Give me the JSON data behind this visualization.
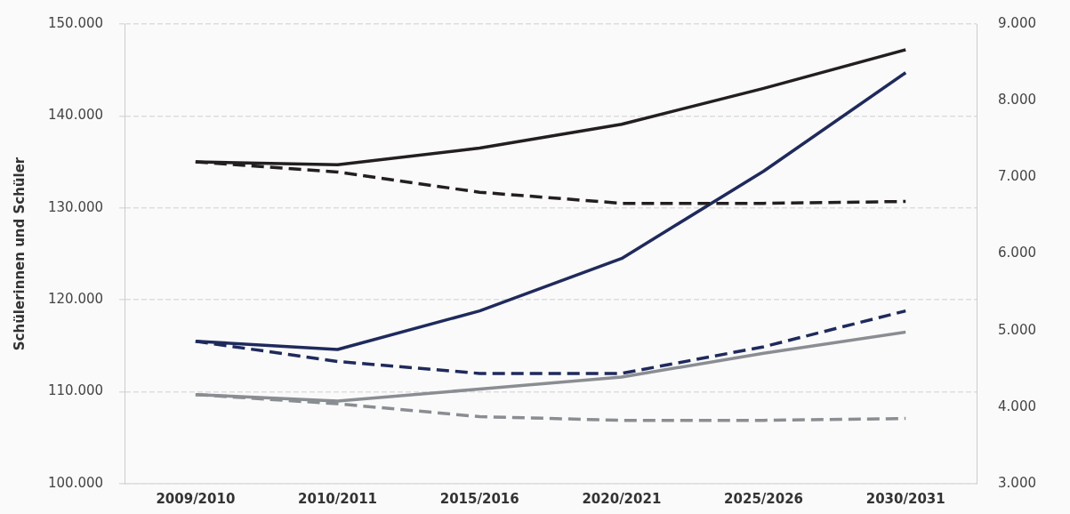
{
  "chart_data": {
    "type": "line",
    "ylabel": "Schülerinnen und Schüler",
    "categories": [
      "2009/2010",
      "2010/2011",
      "2015/2016",
      "2020/2021",
      "2025/2026",
      "2030/2031"
    ],
    "series": [
      {
        "color": "#231f20",
        "line_style": "solid",
        "values": [
          135000,
          134700,
          136500,
          139100,
          143000,
          147200
        ]
      },
      {
        "color": "#231f20",
        "line_style": "dashed",
        "values": [
          135000,
          133900,
          131700,
          130500,
          130500,
          130700
        ]
      },
      {
        "color": "#1f2a5c",
        "line_style": "solid",
        "values": [
          115500,
          114600,
          118800,
          124500,
          134000,
          144700
        ]
      },
      {
        "color": "#1f2a5c",
        "line_style": "dashed",
        "values": [
          115500,
          113300,
          112000,
          112000,
          114900,
          118800
        ]
      },
      {
        "color": "#8a8d92",
        "line_style": "solid",
        "values": [
          109700,
          109000,
          110300,
          111600,
          114200,
          116500
        ]
      },
      {
        "color": "#8a8d92",
        "line_style": "dashed",
        "values": [
          109700,
          108700,
          107300,
          106900,
          106900,
          107100
        ]
      }
    ],
    "ylim": [
      100000,
      150000
    ],
    "yticks": [
      {
        "value": 100000,
        "label": "100.000"
      },
      {
        "value": 110000,
        "label": "110.000"
      },
      {
        "value": 120000,
        "label": "120.000"
      },
      {
        "value": 130000,
        "label": "130.000"
      },
      {
        "value": 140000,
        "label": "140.000"
      },
      {
        "value": 150000,
        "label": "150.000"
      }
    ],
    "y2lim": [
      3000,
      9000
    ],
    "y2ticks": [
      {
        "value": 3000,
        "label": "3.000"
      },
      {
        "value": 4000,
        "label": "4.000"
      },
      {
        "value": 5000,
        "label": "5.000"
      },
      {
        "value": 6000,
        "label": "6.000"
      },
      {
        "value": 7000,
        "label": "7.000"
      },
      {
        "value": 8000,
        "label": "8.000"
      },
      {
        "value": 9000,
        "label": "9.000"
      }
    ],
    "grid": "y",
    "legend": false,
    "marker": "none"
  }
}
